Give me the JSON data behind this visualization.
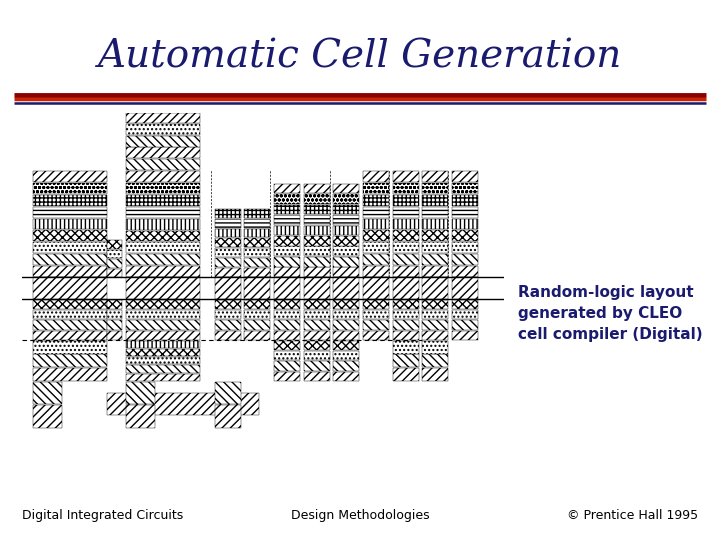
{
  "title": "Automatic Cell Generation",
  "title_color": "#1a1a6e",
  "title_fontsize": 28,
  "title_fontstyle": "italic",
  "bg_color": "#ffffff",
  "sep_line1_color": "#8b0000",
  "sep_line2_color": "#cc2200",
  "sep_line3_color": "#1a1a6e",
  "caption_text": "Random-logic layout\ngenerated by CLEO\ncell compiler (Digital)",
  "caption_color": "#1a1a6e",
  "caption_fontsize": 11,
  "footer_left": "Digital Integrated Circuits",
  "footer_center": "Design Methodologies",
  "footer_right": "© Prentice Hall 1995",
  "footer_color": "#000000",
  "footer_fontsize": 9
}
